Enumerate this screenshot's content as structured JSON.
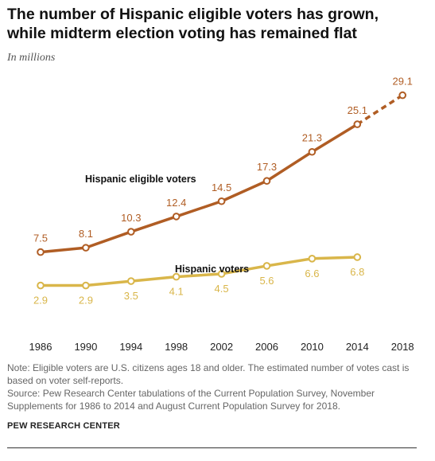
{
  "title_line1": "The number of Hispanic eligible voters has grown,",
  "title_line2": "while midterm election voting has remained flat",
  "subtitle": "In millions",
  "note": "Note: Eligible voters are U.S. citizens ages 18 and older. The estimated number of votes cast is based on voter self-reports.",
  "source": "Source: Pew Research Center tabulations of the Current Population Survey, November Supplements for 1986 to 2014 and August Current Population Survey for 2018.",
  "brand": "PEW RESEARCH CENTER",
  "chart_data": {
    "type": "line",
    "title": "The number of Hispanic eligible voters has grown, while midterm election voting has remained flat",
    "ylabel": "In millions",
    "xlabel": "",
    "x": [
      "1986",
      "1990",
      "1994",
      "1998",
      "2002",
      "2006",
      "2010",
      "2014",
      "2018"
    ],
    "ylim": [
      0,
      30
    ],
    "grid": false,
    "legend": "inline labels",
    "series": [
      {
        "name": "Hispanic eligible voters",
        "color": "#b05d24",
        "values": [
          7.5,
          8.1,
          10.3,
          12.4,
          14.5,
          17.3,
          21.3,
          25.1,
          29.1
        ],
        "dashed_last_segment": true
      },
      {
        "name": "Hispanic voters",
        "color": "#d9b64a",
        "values": [
          2.9,
          2.9,
          3.5,
          4.1,
          4.5,
          5.6,
          6.6,
          6.8,
          null
        ]
      }
    ]
  }
}
